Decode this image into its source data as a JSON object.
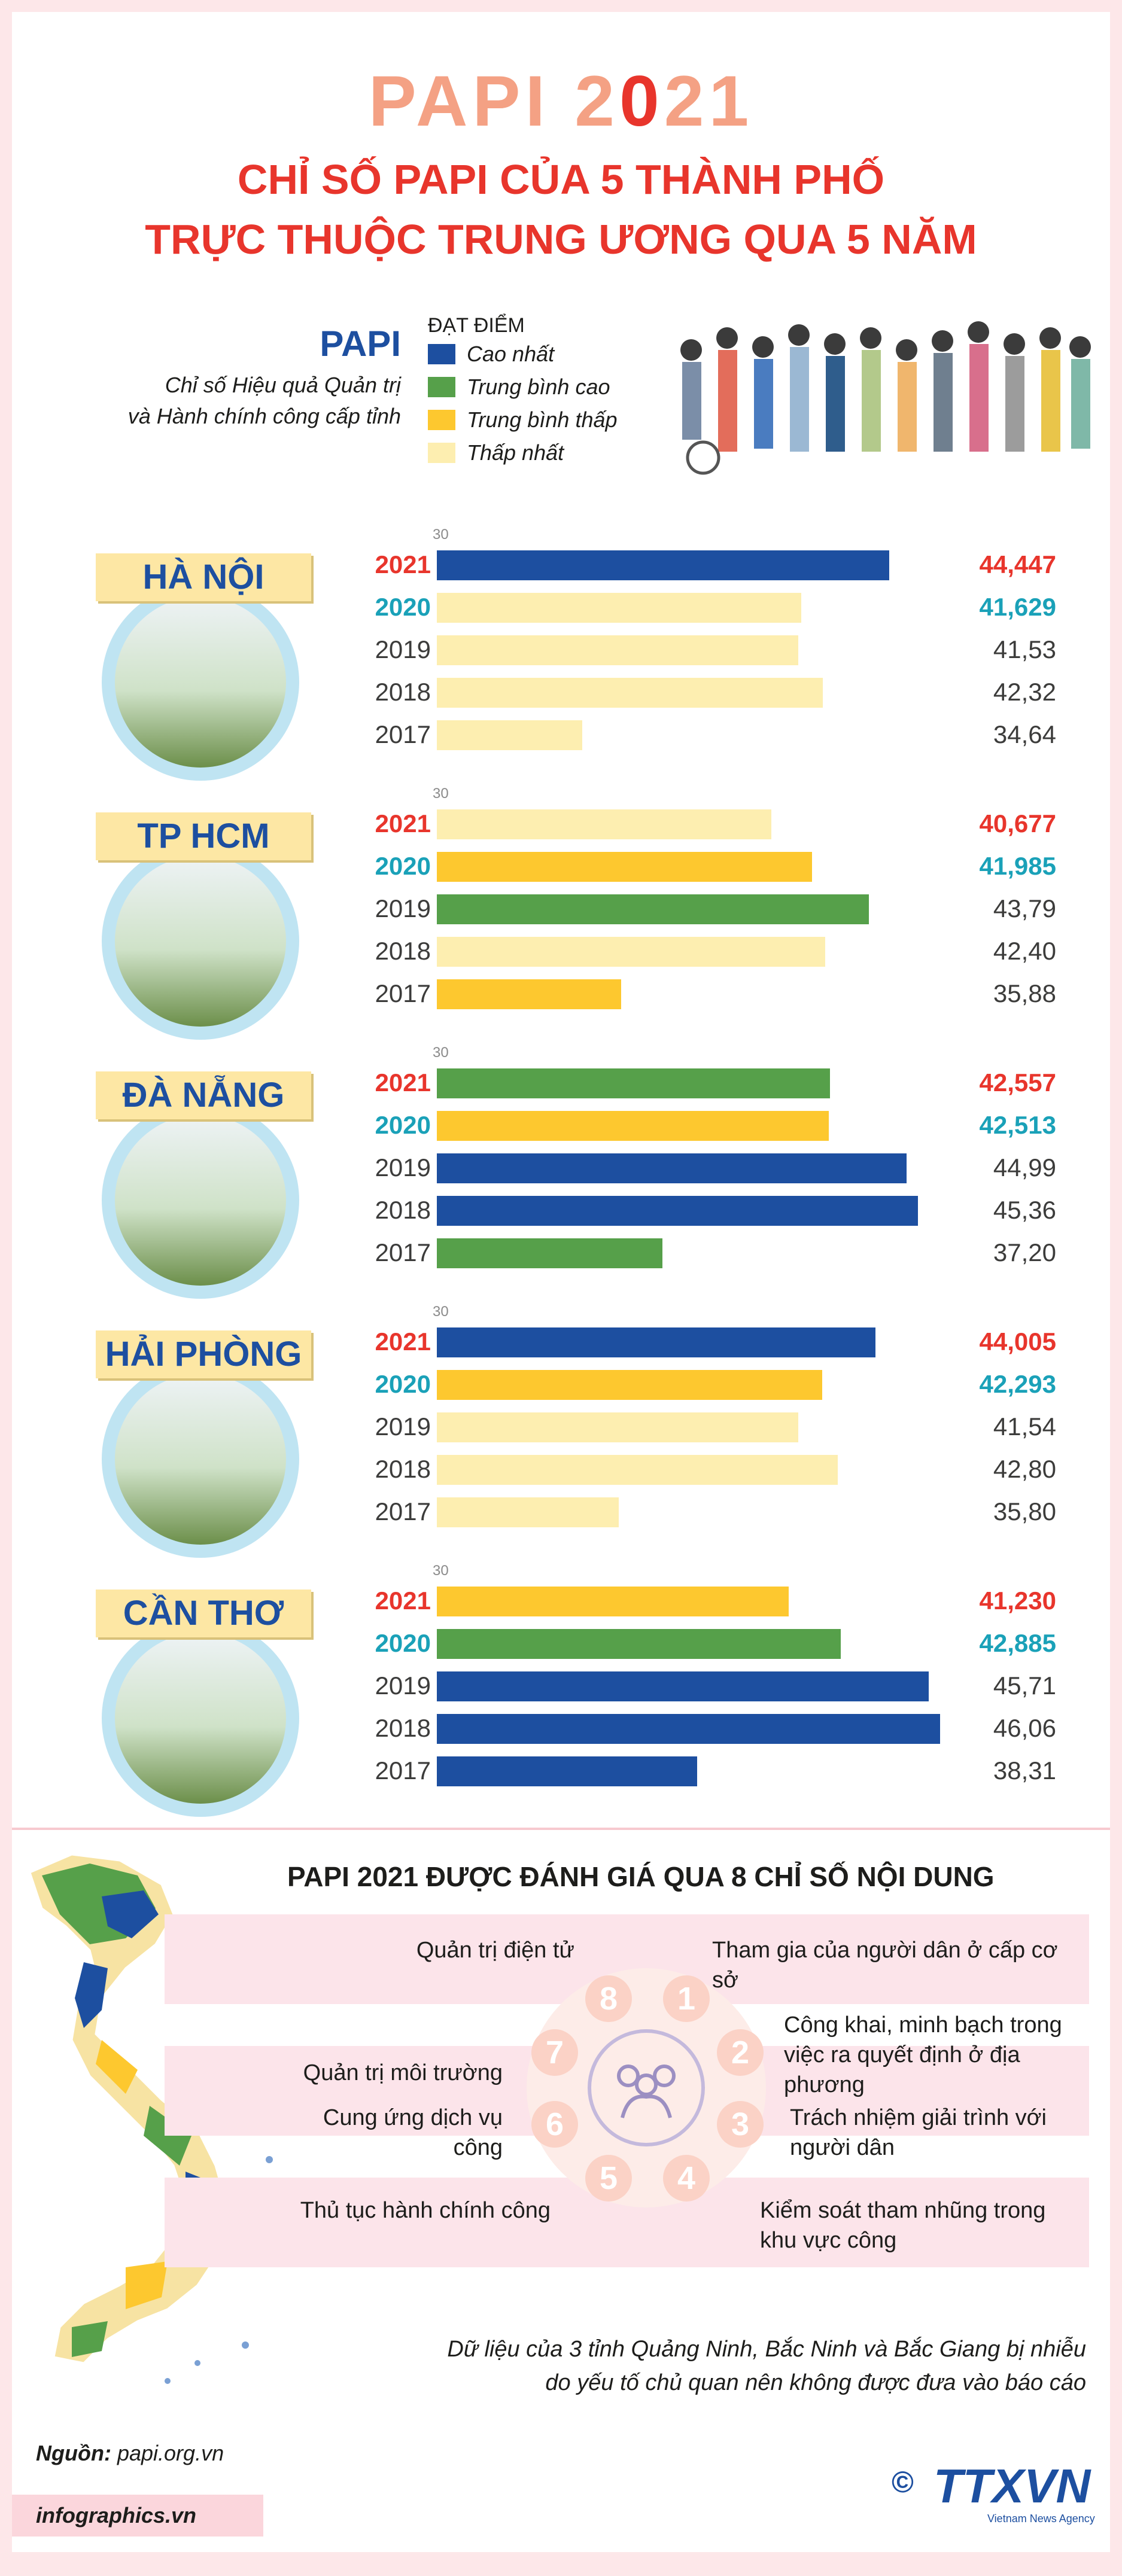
{
  "header": {
    "title_prefix": "PAPI 2",
    "title_o": "0",
    "title_suffix": "21",
    "subtitle_line1": "CHỈ SỐ PAPI CỦA 5 THÀNH PHỐ",
    "subtitle_line2": "TRỰC THUỘC TRUNG ƯƠNG QUA 5 NĂM"
  },
  "legend": {
    "papi": "PAPI",
    "desc_line1": "Chỉ số Hiệu quả Quản trị",
    "desc_line2": "và Hành chính công cấp tỉnh",
    "heading": "ĐẠT ĐIỂM",
    "items": [
      {
        "label": "Cao nhất",
        "color": "#1d4fa0"
      },
      {
        "label": "Trung bình cao",
        "color": "#56a04a"
      },
      {
        "label": "Trung bình thấp",
        "color": "#fdc82f"
      },
      {
        "label": "Thấp nhất",
        "color": "#fdeeb0"
      }
    ]
  },
  "chart_data": {
    "type": "bar",
    "orientation": "horizontal",
    "axis_min_label": "30",
    "xlim": [
      30,
      47
    ],
    "categories": [
      "2021",
      "2020",
      "2019",
      "2018",
      "2017"
    ],
    "cities": [
      {
        "name": "HÀ NỘI",
        "values": [
          "44,447",
          "41,629",
          "41,53",
          "42,32",
          "34,64"
        ],
        "numeric": [
          44.447,
          41.629,
          41.53,
          42.32,
          34.64
        ],
        "levels": [
          "Cao nhất",
          "Thấp nhất",
          "Thấp nhất",
          "Thấp nhất",
          "Thấp nhất"
        ]
      },
      {
        "name": "TP HCM",
        "values": [
          "40,677",
          "41,985",
          "43,79",
          "42,40",
          "35,88"
        ],
        "numeric": [
          40.677,
          41.985,
          43.79,
          42.4,
          35.88
        ],
        "levels": [
          "Thấp nhất",
          "Trung bình thấp",
          "Trung bình cao",
          "Thấp nhất",
          "Trung bình thấp"
        ]
      },
      {
        "name": "ĐÀ NẴNG",
        "values": [
          "42,557",
          "42,513",
          "44,99",
          "45,36",
          "37,20"
        ],
        "numeric": [
          42.557,
          42.513,
          44.99,
          45.36,
          37.2
        ],
        "levels": [
          "Trung bình cao",
          "Trung bình thấp",
          "Cao nhất",
          "Cao nhất",
          "Trung bình cao"
        ]
      },
      {
        "name": "HẢI PHÒNG",
        "values": [
          "44,005",
          "42,293",
          "41,54",
          "42,80",
          "35,80"
        ],
        "numeric": [
          44.005,
          42.293,
          41.54,
          42.8,
          35.8
        ],
        "levels": [
          "Cao nhất",
          "Trung bình thấp",
          "Thấp nhất",
          "Thấp nhất",
          "Thấp nhất"
        ]
      },
      {
        "name": "CẦN THƠ",
        "values": [
          "41,230",
          "42,885",
          "45,71",
          "46,06",
          "38,31"
        ],
        "numeric": [
          41.23,
          42.885,
          45.71,
          46.06,
          38.31
        ],
        "levels": [
          "Trung bình thấp",
          "Trung bình cao",
          "Cao nhất",
          "Cao nhất",
          "Cao nhất"
        ]
      }
    ]
  },
  "indicators": {
    "title": "PAPI 2021 ĐƯỢC ĐÁNH GIÁ QUA 8 CHỈ SỐ NỘI DUNG",
    "items": [
      {
        "n": "1",
        "text": "Tham gia của người dân ở cấp cơ sở"
      },
      {
        "n": "2",
        "text": "Công khai, minh bạch trong việc ra quyết định ở địa phương"
      },
      {
        "n": "3",
        "text": "Trách nhiệm giải trình với người dân"
      },
      {
        "n": "4",
        "text": "Kiểm soát tham nhũng trong khu vực công"
      },
      {
        "n": "5",
        "text": "Thủ tục hành chính công"
      },
      {
        "n": "6",
        "text": "Cung ứng dịch vụ công"
      },
      {
        "n": "7",
        "text": "Quản trị môi trường"
      },
      {
        "n": "8",
        "text": "Quản trị điện tử"
      }
    ]
  },
  "note": {
    "line1": "Dữ liệu của 3 tỉnh Quảng Ninh, Bắc Ninh và Bắc Giang bị nhiễu",
    "line2": "do yếu tố chủ quan nên không được đưa vào báo cáo"
  },
  "footer": {
    "source_label": "Nguồn:",
    "source": "papi.org.vn",
    "site": "infographics.vn",
    "copyright": "©",
    "logo": "TTXVN",
    "logo_sub": "Vietnam News Agency"
  }
}
